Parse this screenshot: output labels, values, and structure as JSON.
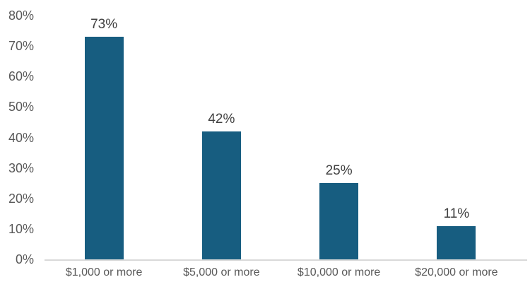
{
  "chart_data": {
    "type": "bar",
    "title": "",
    "xlabel": "",
    "ylabel": "",
    "categories": [
      "$1,000 or more",
      "$5,000 or more",
      "$10,000 or more",
      "$20,000 or more"
    ],
    "values": [
      73,
      42,
      25,
      11
    ],
    "value_labels": [
      "73%",
      "42%",
      "25%",
      "11%"
    ],
    "y_ticks": [
      "0%",
      "10%",
      "20%",
      "30%",
      "40%",
      "50%",
      "60%",
      "70%",
      "80%"
    ],
    "ylim": [
      0,
      80
    ],
    "grid": false,
    "legend": false,
    "colors": {
      "bar": "#175D80",
      "axis_line": "#D9D9D9",
      "tick_label": "#595959",
      "data_label": "#404040",
      "background": "#FFFFFF"
    }
  }
}
